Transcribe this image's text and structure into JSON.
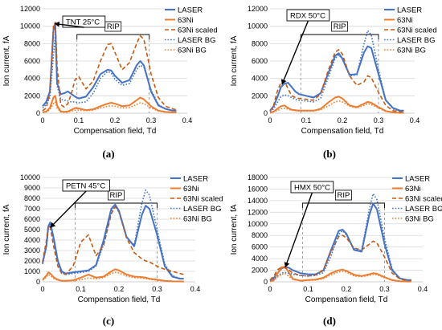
{
  "colors": {
    "laser": "#4472c4",
    "ni": "#ed7d31",
    "ni_scaled": "#c55a11",
    "laser_bg": "#4472c4",
    "ni_bg": "#ed7d31",
    "grid": "#d9d9d9",
    "axis": "#bfbfbf",
    "annotation": "#000000"
  },
  "chart_data": [
    {
      "type": "line",
      "panel": "(a)",
      "annotation": "TNT 25°C",
      "rip_label": "RIP",
      "xlabel": "Compensation field, Td",
      "ylabel": "Ion current, fA",
      "xlim": [
        0,
        0.4
      ],
      "ylim": [
        0,
        12000
      ],
      "xticks": [
        "0",
        "0.1",
        "0.2",
        "0.3",
        "0.4"
      ],
      "yticks": [
        "0",
        "2000",
        "4000",
        "6000",
        "8000",
        "10000",
        "12000"
      ],
      "grid": true,
      "legend_position": "top-right",
      "x": [
        0,
        0.01,
        0.02,
        0.03,
        0.035,
        0.04,
        0.05,
        0.06,
        0.07,
        0.08,
        0.09,
        0.1,
        0.12,
        0.14,
        0.16,
        0.18,
        0.19,
        0.2,
        0.22,
        0.24,
        0.26,
        0.27,
        0.28,
        0.3,
        0.32,
        0.34,
        0.36,
        0.37
      ],
      "series": [
        {
          "name": "LASER",
          "style": "solid",
          "values": [
            800,
            1300,
            2500,
            9500,
            10400,
            3500,
            2200,
            2300,
            2500,
            2200,
            1900,
            1700,
            1900,
            3000,
            4500,
            5000,
            4900,
            4300,
            3500,
            3800,
            5500,
            6000,
            5500,
            2500,
            900,
            500,
            300,
            300
          ]
        },
        {
          "name": "63Ni",
          "style": "solid",
          "values": [
            100,
            200,
            600,
            1800,
            2000,
            900,
            200,
            150,
            200,
            400,
            600,
            550,
            350,
            450,
            800,
            1100,
            1200,
            1100,
            800,
            900,
            1500,
            1800,
            1600,
            800,
            300,
            150,
            100,
            100
          ]
        },
        {
          "name": "63Ni scaled",
          "style": "dash",
          "values": [
            300,
            600,
            2300,
            10000,
            10400,
            5500,
            1000,
            700,
            1100,
            2300,
            3900,
            4200,
            2800,
            3700,
            6000,
            7900,
            8000,
            7000,
            5000,
            5800,
            8000,
            8900,
            8500,
            4500,
            1800,
            800,
            500,
            400
          ]
        },
        {
          "name": "LASER BG",
          "style": "dot",
          "values": [
            600,
            1000,
            1800,
            6600,
            9000,
            3200,
            1600,
            1500,
            1400,
            1300,
            1300,
            1200,
            1300,
            2300,
            4000,
            4800,
            4600,
            3900,
            3200,
            3400,
            5000,
            5500,
            5300,
            2700,
            1000,
            500,
            300,
            300
          ]
        },
        {
          "name": "63Ni BG",
          "style": "dot",
          "values": [
            80,
            150,
            400,
            1100,
            1300,
            600,
            150,
            100,
            120,
            250,
            350,
            350,
            300,
            350,
            600,
            800,
            850,
            800,
            600,
            650,
            1000,
            1200,
            1100,
            600,
            250,
            120,
            80,
            80
          ]
        }
      ]
    },
    {
      "type": "line",
      "panel": "(b)",
      "annotation": "RDX 50°C",
      "rip_label": "RIP",
      "xlabel": "Compensation field, Td",
      "ylabel": "Ion current, fA",
      "xlim": [
        0,
        0.4
      ],
      "ylim": [
        0,
        12000
      ],
      "xticks": [
        "0",
        "0.1",
        "0.2",
        "0.3",
        "0.4"
      ],
      "yticks": [
        "0",
        "2000",
        "4000",
        "6000",
        "8000",
        "10000",
        "12000"
      ],
      "grid": true,
      "legend_position": "top-right",
      "x": [
        0,
        0.01,
        0.02,
        0.03,
        0.04,
        0.05,
        0.06,
        0.07,
        0.08,
        0.1,
        0.12,
        0.14,
        0.16,
        0.18,
        0.19,
        0.2,
        0.22,
        0.24,
        0.26,
        0.27,
        0.28,
        0.3,
        0.32,
        0.34,
        0.36,
        0.37
      ],
      "series": [
        {
          "name": "LASER",
          "style": "solid",
          "values": [
            300,
            800,
            1800,
            3000,
            3400,
            3500,
            3000,
            2500,
            2200,
            2000,
            1800,
            2300,
            4500,
            6600,
            6900,
            6300,
            4400,
            4500,
            7000,
            7700,
            7500,
            4500,
            1500,
            600,
            300,
            300
          ]
        },
        {
          "name": "63Ni",
          "style": "solid",
          "values": [
            50,
            200,
            500,
            800,
            900,
            600,
            400,
            350,
            300,
            300,
            300,
            500,
            1200,
            1800,
            1900,
            1700,
            900,
            700,
            1100,
            1300,
            1200,
            700,
            250,
            100,
            50,
            50
          ]
        },
        {
          "name": "63Ni scaled",
          "style": "dash",
          "values": [
            200,
            900,
            2500,
            3500,
            3700,
            2800,
            2000,
            1800,
            1700,
            1600,
            1500,
            2200,
            4800,
            7000,
            7300,
            6800,
            4300,
            3200,
            3600,
            4300,
            4100,
            2400,
            900,
            300,
            150,
            100
          ]
        },
        {
          "name": "LASER BG",
          "style": "dot",
          "values": [
            200,
            500,
            1200,
            1900,
            2100,
            2000,
            1800,
            1600,
            1500,
            1400,
            1300,
            1700,
            4000,
            6300,
            6700,
            6200,
            4300,
            4400,
            8000,
            9500,
            9000,
            5000,
            1500,
            500,
            250,
            200
          ]
        },
        {
          "name": "63Ni BG",
          "style": "dot",
          "values": [
            50,
            150,
            300,
            500,
            550,
            450,
            350,
            300,
            250,
            250,
            250,
            400,
            800,
            1300,
            1400,
            1300,
            800,
            600,
            900,
            1100,
            1000,
            600,
            200,
            80,
            40,
            40
          ]
        }
      ]
    },
    {
      "type": "line",
      "panel": "(c)",
      "annotation": "PETN 45°C",
      "rip_label": "RIP",
      "xlabel": "Compensation field, Td",
      "ylabel": "Ion current, fA",
      "xlim": [
        0,
        0.4
      ],
      "ylim": [
        0,
        10000
      ],
      "xticks": [
        "0",
        "0.1",
        "0.2",
        "0.3",
        "0.4"
      ],
      "yticks": [
        "0",
        "1000",
        "2000",
        "3000",
        "4000",
        "5000",
        "6000",
        "7000",
        "8000",
        "9000",
        "10000"
      ],
      "grid": true,
      "legend_position": "top-right",
      "x": [
        0,
        0.01,
        0.015,
        0.02,
        0.03,
        0.04,
        0.05,
        0.06,
        0.08,
        0.1,
        0.12,
        0.14,
        0.16,
        0.18,
        0.19,
        0.2,
        0.22,
        0.24,
        0.26,
        0.27,
        0.28,
        0.3,
        0.32,
        0.34,
        0.36,
        0.37
      ],
      "series": [
        {
          "name": "LASER",
          "style": "solid",
          "values": [
            1800,
            3500,
            5300,
            5700,
            4000,
            2000,
            1000,
            800,
            900,
            1000,
            1100,
            1600,
            4000,
            7000,
            7400,
            6800,
            4300,
            3400,
            6400,
            7300,
            7000,
            4500,
            1500,
            500,
            300,
            300
          ]
        },
        {
          "name": "63Ni",
          "style": "solid",
          "values": [
            200,
            600,
            900,
            800,
            400,
            200,
            100,
            100,
            150,
            400,
            700,
            400,
            500,
            1000,
            1200,
            1100,
            700,
            500,
            450,
            400,
            300,
            200,
            100,
            50,
            40,
            30
          ]
        },
        {
          "name": "63Ni scaled",
          "style": "dash",
          "values": [
            1900,
            4000,
            5400,
            5200,
            3200,
            1500,
            800,
            700,
            1500,
            3800,
            4500,
            2500,
            3500,
            6500,
            7200,
            6700,
            4200,
            2800,
            2200,
            2000,
            1900,
            1500,
            1200,
            1000,
            800,
            700
          ]
        },
        {
          "name": "LASER BG",
          "style": "dot",
          "values": [
            1700,
            3300,
            5000,
            5400,
            3800,
            1800,
            900,
            700,
            800,
            900,
            1000,
            1500,
            3600,
            6700,
            7300,
            6700,
            4300,
            3500,
            7500,
            8800,
            8300,
            5000,
            1700,
            600,
            300,
            300
          ]
        },
        {
          "name": "63Ni BG",
          "style": "dot",
          "values": [
            150,
            450,
            700,
            600,
            300,
            150,
            80,
            80,
            100,
            200,
            350,
            300,
            400,
            800,
            900,
            850,
            550,
            400,
            350,
            300,
            250,
            150,
            80,
            40,
            30,
            20
          ]
        }
      ]
    },
    {
      "type": "line",
      "panel": "(d)",
      "annotation": "HMX 50°C",
      "rip_label": "RIP",
      "xlabel": "Compensation field, Td",
      "ylabel": "Ion current, fA",
      "xlim": [
        0,
        0.4
      ],
      "ylim": [
        0,
        18000
      ],
      "xticks": [
        "0",
        "0.1",
        "0.2",
        "0.3",
        "0.4"
      ],
      "yticks": [
        "0",
        "2000",
        "4000",
        "6000",
        "8000",
        "10000",
        "12000",
        "14000",
        "16000",
        "18000"
      ],
      "grid": true,
      "legend_position": "top-right",
      "x": [
        0,
        0.01,
        0.02,
        0.03,
        0.04,
        0.05,
        0.06,
        0.08,
        0.1,
        0.12,
        0.14,
        0.16,
        0.18,
        0.19,
        0.2,
        0.22,
        0.24,
        0.26,
        0.27,
        0.28,
        0.3,
        0.32,
        0.34,
        0.36,
        0.37
      ],
      "series": [
        {
          "name": "LASER",
          "style": "solid",
          "values": [
            300,
            700,
            1500,
            2300,
            2600,
            2400,
            2000,
            1500,
            1300,
            1300,
            2000,
            5500,
            8800,
            9000,
            8300,
            5500,
            5200,
            11500,
            13500,
            12500,
            6500,
            2000,
            600,
            300,
            300
          ]
        },
        {
          "name": "63Ni",
          "style": "solid",
          "values": [
            50,
            300,
            1500,
            2500,
            2600,
            1500,
            500,
            200,
            300,
            400,
            700,
            1500,
            2000,
            2100,
            1900,
            1200,
            1000,
            1300,
            1500,
            1400,
            800,
            300,
            100,
            50,
            50
          ]
        },
        {
          "name": "63Ni scaled",
          "style": "dash",
          "values": [
            300,
            1000,
            2100,
            2500,
            2400,
            2000,
            1500,
            1100,
            1000,
            1200,
            2100,
            5200,
            7800,
            8000,
            7600,
            5800,
            5500,
            6500,
            7000,
            6700,
            4300,
            1500,
            500,
            200,
            200
          ]
        },
        {
          "name": "LASER BG",
          "style": "dot",
          "values": [
            200,
            500,
            1000,
            1500,
            1600,
            1500,
            1300,
            1100,
            1000,
            1100,
            1600,
            4500,
            8200,
            8800,
            8100,
            5700,
            5400,
            12500,
            15200,
            14200,
            7500,
            2200,
            600,
            300,
            300
          ]
        },
        {
          "name": "63Ni BG",
          "style": "dot",
          "values": [
            50,
            200,
            800,
            1300,
            1400,
            900,
            400,
            200,
            250,
            300,
            550,
            1200,
            1700,
            1800,
            1700,
            1000,
            900,
            1100,
            1300,
            1200,
            700,
            250,
            80,
            40,
            40
          ]
        }
      ]
    }
  ]
}
